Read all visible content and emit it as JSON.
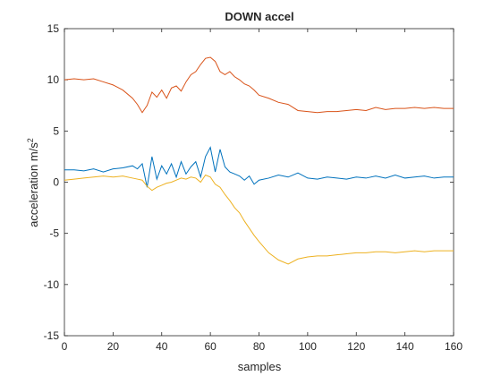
{
  "chart_data": {
    "type": "line",
    "title": "DOWN accel",
    "xlabel": "samples",
    "ylabel": {
      "text": "acceleration m/s",
      "superscript": "2"
    },
    "x": [
      0,
      4,
      8,
      12,
      16,
      20,
      24,
      28,
      30,
      32,
      34,
      36,
      38,
      40,
      42,
      44,
      46,
      48,
      50,
      52,
      54,
      56,
      58,
      60,
      62,
      64,
      66,
      68,
      70,
      72,
      74,
      76,
      78,
      80,
      84,
      88,
      92,
      96,
      100,
      104,
      108,
      112,
      116,
      120,
      124,
      128,
      132,
      136,
      140,
      144,
      148,
      152,
      156,
      160
    ],
    "series": [
      {
        "color": "#0072bd",
        "values": [
          1.2,
          1.2,
          1.1,
          1.3,
          1.0,
          1.3,
          1.4,
          1.6,
          1.3,
          1.8,
          -0.5,
          2.5,
          0.3,
          1.6,
          0.8,
          1.8,
          0.5,
          2.0,
          0.8,
          1.5,
          2.0,
          0.5,
          2.5,
          3.4,
          1.0,
          3.2,
          1.5,
          1.0,
          0.8,
          0.6,
          0.2,
          0.6,
          -0.2,
          0.2,
          0.4,
          0.7,
          0.5,
          0.9,
          0.4,
          0.3,
          0.5,
          0.4,
          0.3,
          0.5,
          0.4,
          0.6,
          0.4,
          0.7,
          0.4,
          0.5,
          0.6,
          0.4,
          0.5,
          0.5
        ]
      },
      {
        "color": "#d95319",
        "values": [
          10.0,
          10.1,
          10.0,
          10.1,
          9.8,
          9.5,
          9.0,
          8.2,
          7.6,
          6.8,
          7.5,
          8.8,
          8.3,
          9.0,
          8.2,
          9.2,
          9.4,
          8.9,
          9.8,
          10.5,
          10.8,
          11.5,
          12.1,
          12.2,
          11.8,
          10.8,
          10.5,
          10.8,
          10.3,
          10.0,
          9.6,
          9.4,
          9.0,
          8.5,
          8.2,
          7.8,
          7.6,
          7.0,
          6.9,
          6.8,
          6.9,
          6.9,
          7.0,
          7.1,
          7.0,
          7.3,
          7.1,
          7.2,
          7.2,
          7.3,
          7.2,
          7.3,
          7.2,
          7.2
        ]
      },
      {
        "color": "#edb120",
        "values": [
          0.2,
          0.3,
          0.4,
          0.5,
          0.6,
          0.5,
          0.6,
          0.4,
          0.3,
          0.2,
          -0.4,
          -0.8,
          -0.5,
          -0.3,
          -0.1,
          0.0,
          0.2,
          0.4,
          0.3,
          0.5,
          0.4,
          0.0,
          0.7,
          0.5,
          -0.2,
          -0.5,
          -1.2,
          -1.8,
          -2.5,
          -3.0,
          -3.8,
          -4.5,
          -5.2,
          -5.8,
          -6.9,
          -7.6,
          -8.0,
          -7.5,
          -7.3,
          -7.2,
          -7.2,
          -7.1,
          -7.0,
          -6.9,
          -6.9,
          -6.8,
          -6.8,
          -6.9,
          -6.8,
          -6.7,
          -6.8,
          -6.7,
          -6.7,
          -6.7
        ]
      }
    ],
    "xlim": [
      0,
      160
    ],
    "xticks": [
      0,
      20,
      40,
      60,
      80,
      100,
      120,
      140,
      160
    ],
    "ylim": [
      -15,
      15
    ],
    "yticks": [
      -15,
      -10,
      -5,
      0,
      5,
      10,
      15
    ],
    "grid": false
  }
}
